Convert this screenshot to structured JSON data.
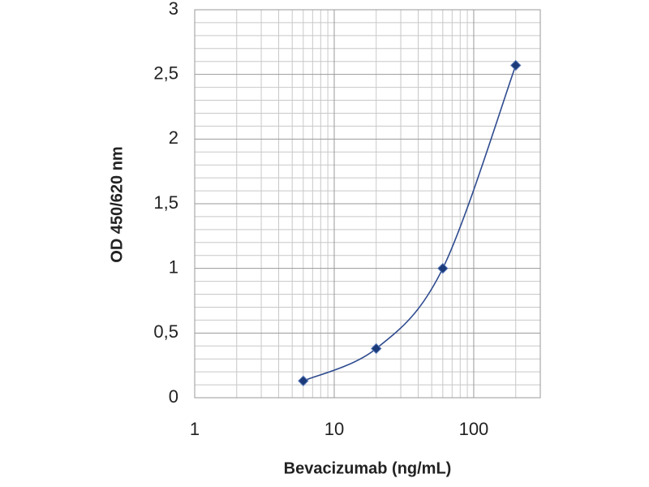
{
  "chart_data": {
    "type": "line",
    "x_label": "Bevacizumab (ng/mL)",
    "y_label": "OD 450/620 nm",
    "x": [
      6,
      20,
      60,
      200
    ],
    "series": [
      {
        "color": "#2e4b8f",
        "marker_color": "#1b3a7a",
        "values": [
          0.13,
          0.38,
          1.0,
          2.57
        ]
      }
    ],
    "xlim": [
      1,
      300
    ],
    "xticks": [
      1,
      10,
      100
    ],
    "xscale": "log",
    "ylim": [
      0,
      3
    ],
    "yticks": [
      0,
      {
        "value": 0.5,
        "label": "0,5"
      },
      1,
      {
        "value": 1.5,
        "label": "1,5"
      },
      2,
      {
        "value": 2.5,
        "label": "2,5"
      },
      3
    ],
    "grid": true,
    "minor_grid": true,
    "y_minor_per_major": 5,
    "smooth": true
  }
}
